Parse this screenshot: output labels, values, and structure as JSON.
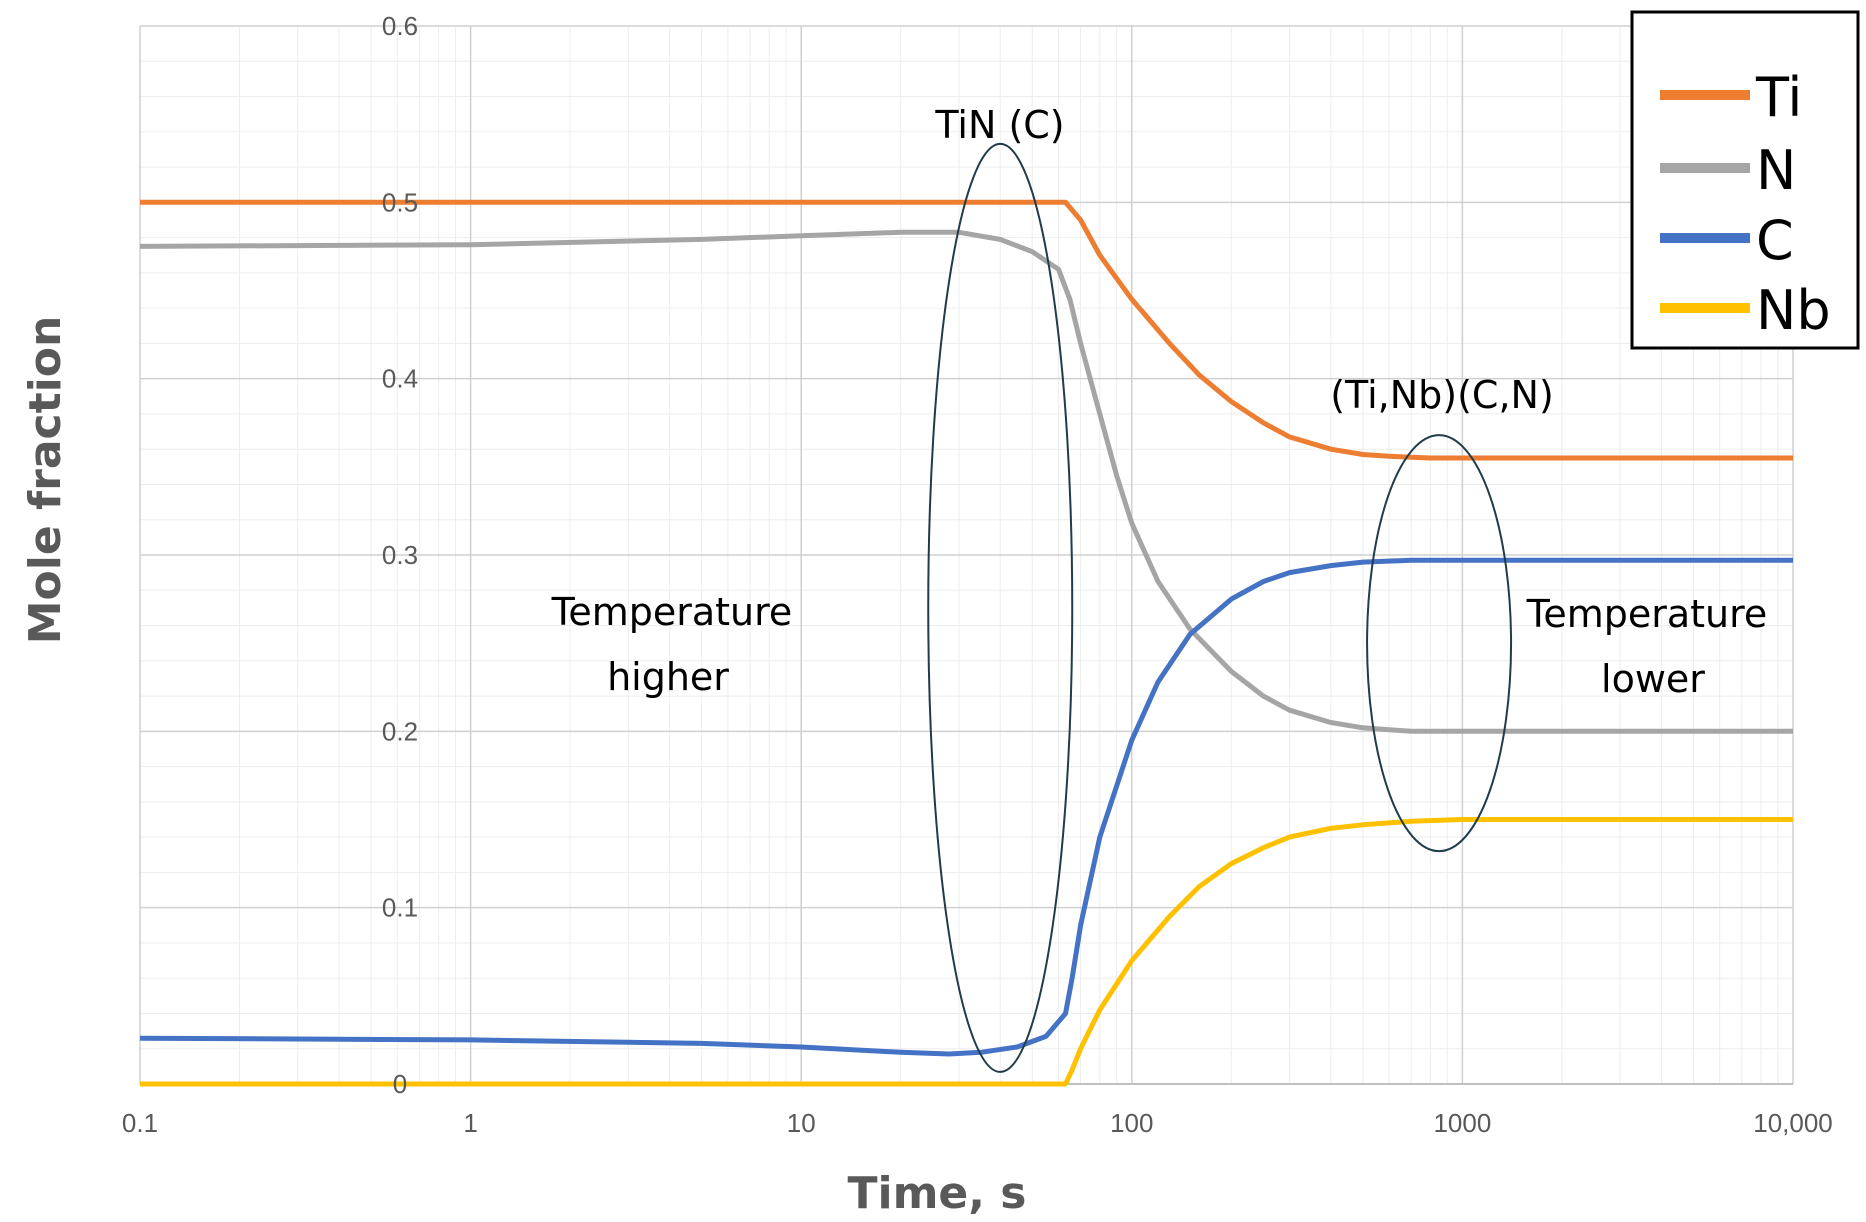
{
  "chart_data": {
    "type": "line",
    "title": "",
    "xlabel": "Time, s",
    "ylabel": "Mole fraction",
    "xscale": "log",
    "xlim": [
      0.1,
      10000
    ],
    "ylim": [
      0,
      0.6
    ],
    "x_tick_labels": [
      "0.1",
      "1",
      "10",
      "100",
      "1000",
      "10,000"
    ],
    "y_tick_labels": [
      "0",
      "0.1",
      "0.2",
      "0.3",
      "0.4",
      "0.5",
      "0.6"
    ],
    "grid": true,
    "legend_position": "top-right",
    "series": [
      {
        "name": "Ti",
        "color": "#ED7D31",
        "x": [
          0.1,
          1,
          10,
          40,
          63,
          70,
          80,
          100,
          130,
          160,
          200,
          250,
          300,
          400,
          500,
          600,
          800,
          1000,
          2000,
          5000,
          10000
        ],
        "values": [
          0.5,
          0.5,
          0.5,
          0.5,
          0.5,
          0.49,
          0.47,
          0.445,
          0.42,
          0.402,
          0.387,
          0.375,
          0.367,
          0.36,
          0.357,
          0.356,
          0.355,
          0.355,
          0.355,
          0.355,
          0.355
        ]
      },
      {
        "name": "N",
        "color": "#A5A5A5",
        "x": [
          0.1,
          1,
          5,
          10,
          20,
          30,
          40,
          50,
          60,
          65,
          70,
          80,
          90,
          100,
          120,
          150,
          200,
          250,
          300,
          400,
          500,
          700,
          1000,
          2000,
          5000,
          10000
        ],
        "values": [
          0.475,
          0.476,
          0.479,
          0.481,
          0.483,
          0.483,
          0.479,
          0.472,
          0.462,
          0.445,
          0.42,
          0.38,
          0.345,
          0.318,
          0.285,
          0.258,
          0.234,
          0.22,
          0.212,
          0.205,
          0.202,
          0.2,
          0.2,
          0.2,
          0.2,
          0.2
        ]
      },
      {
        "name": "C",
        "color": "#4472C4",
        "x": [
          0.1,
          1,
          5,
          10,
          20,
          28,
          35,
          45,
          55,
          63,
          66,
          70,
          80,
          100,
          120,
          150,
          200,
          250,
          300,
          400,
          500,
          700,
          1000,
          2000,
          5000,
          10000
        ],
        "values": [
          0.026,
          0.025,
          0.023,
          0.021,
          0.018,
          0.017,
          0.018,
          0.021,
          0.027,
          0.04,
          0.06,
          0.09,
          0.14,
          0.195,
          0.228,
          0.255,
          0.275,
          0.285,
          0.29,
          0.294,
          0.296,
          0.297,
          0.297,
          0.297,
          0.297,
          0.297
        ]
      },
      {
        "name": "Nb",
        "color": "#FFC000",
        "x": [
          0.1,
          1,
          10,
          40,
          63,
          66,
          70,
          80,
          100,
          130,
          160,
          200,
          250,
          300,
          400,
          500,
          700,
          1000,
          2000,
          5000,
          10000
        ],
        "values": [
          0.0,
          0.0,
          0.0,
          0.0,
          0.0,
          0.008,
          0.02,
          0.042,
          0.07,
          0.095,
          0.112,
          0.125,
          0.134,
          0.14,
          0.145,
          0.147,
          0.149,
          0.15,
          0.15,
          0.15,
          0.15
        ]
      }
    ],
    "annotations": [
      {
        "id": "tin-label",
        "text": "TiN (C)"
      },
      {
        "id": "tinb-label",
        "text": "(Ti,Nb)(C,N)"
      },
      {
        "id": "temp-higher",
        "lines": [
          "Temperature",
          "higher"
        ]
      },
      {
        "id": "temp-lower",
        "lines": [
          "Temperature",
          "lower"
        ]
      }
    ],
    "highlight_ellipses": [
      {
        "name": "tin-ellipse",
        "center_x": 40,
        "center_y": 0.27,
        "color": "#1F3C4B"
      },
      {
        "name": "tinb-ellipse",
        "center_x": 850,
        "center_y": 0.25,
        "color": "#1F3C4B"
      }
    ]
  }
}
